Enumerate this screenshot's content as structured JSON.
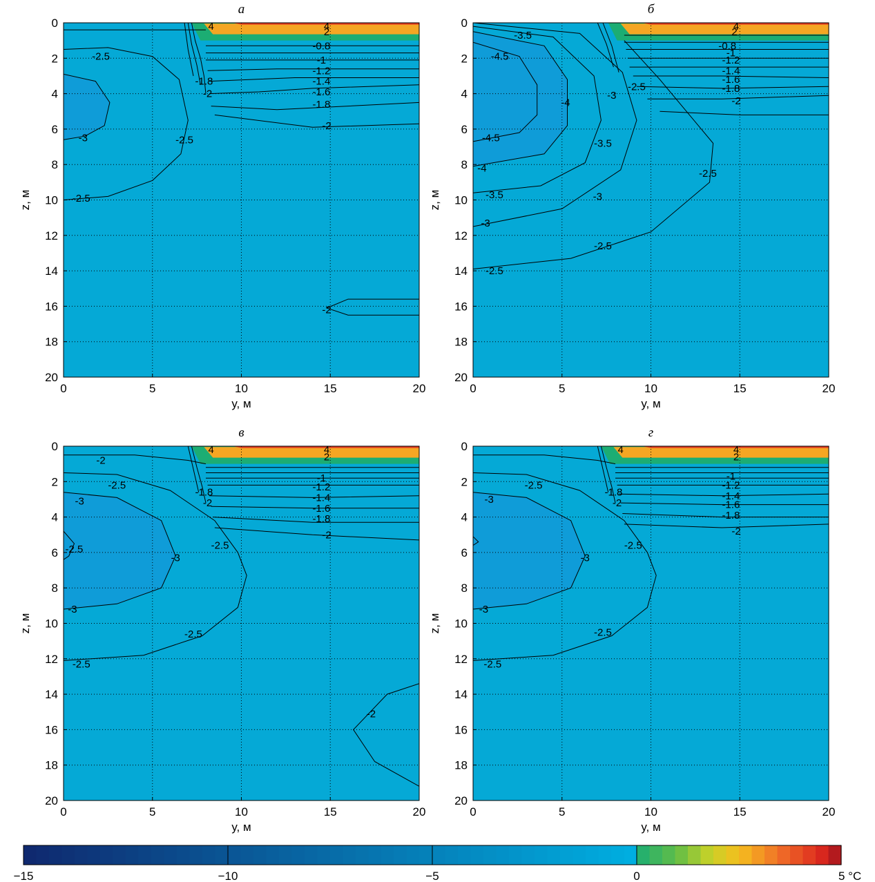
{
  "colorbar": {
    "ticks": [
      "−15",
      "−10",
      "−5",
      "0",
      "5 °C"
    ],
    "range": [
      -15,
      5
    ],
    "unit": "°C"
  },
  "colors": {
    "background_fill": "#05a9d6",
    "cold_core": "#0f9cd8",
    "colder_core": "#1590d4",
    "green": "#1cad73",
    "orange": "#f5a623",
    "red": "#e03a20",
    "line": "#000000"
  },
  "chart_data": [
    {
      "type": "contour",
      "title": "а",
      "xlabel": "y, м",
      "ylabel": "z, м",
      "xlim": [
        0,
        20
      ],
      "ylim": [
        20,
        0
      ],
      "xticks": [
        "0",
        "5",
        "10",
        "15",
        "20"
      ],
      "yticks": [
        "0",
        "2",
        "4",
        "6",
        "8",
        "10",
        "12",
        "14",
        "16",
        "18",
        "20"
      ],
      "grid": true,
      "contour_labels": [
        {
          "text": "-2.5",
          "y": 2.1,
          "z": 1.9
        },
        {
          "text": "-3",
          "y": 1.1,
          "z": 6.5
        },
        {
          "text": "-2.5",
          "y": 6.8,
          "z": 6.6
        },
        {
          "text": "-2.5",
          "y": 1.0,
          "z": 9.9
        },
        {
          "text": "-2",
          "y": 14.8,
          "z": 16.2
        },
        {
          "text": "-2",
          "y": 14.8,
          "z": 5.8
        },
        {
          "text": "-1.8",
          "y": 14.5,
          "z": 4.6
        },
        {
          "text": "-1.6",
          "y": 14.5,
          "z": 3.9
        },
        {
          "text": "-1.4",
          "y": 14.5,
          "z": 3.3
        },
        {
          "text": "-1.2",
          "y": 14.5,
          "z": 2.7
        },
        {
          "text": "-1",
          "y": 14.5,
          "z": 2.1
        },
        {
          "text": "-0.8",
          "y": 14.5,
          "z": 1.3
        },
        {
          "text": "-2",
          "y": 8.1,
          "z": 4.0
        },
        {
          "text": "-1.8",
          "y": 7.9,
          "z": 3.3
        },
        {
          "text": "2",
          "y": 14.8,
          "z": 0.5
        },
        {
          "text": "4",
          "y": 14.8,
          "z": 0.2
        },
        {
          "text": "4",
          "y": 8.3,
          "z": 0.2
        }
      ]
    },
    {
      "type": "contour",
      "title": "б",
      "xlabel": "y, м",
      "ylabel": "z, м",
      "xlim": [
        0,
        20
      ],
      "ylim": [
        20,
        0
      ],
      "xticks": [
        "0",
        "5",
        "10",
        "15",
        "20"
      ],
      "yticks": [
        "0",
        "2",
        "4",
        "6",
        "8",
        "10",
        "12",
        "14",
        "16",
        "18",
        "20"
      ],
      "grid": true,
      "contour_labels": [
        {
          "text": "-4.5",
          "y": 1.5,
          "z": 1.9
        },
        {
          "text": "-4",
          "y": 5.2,
          "z": 4.5
        },
        {
          "text": "-4.5",
          "y": 1.0,
          "z": 6.5
        },
        {
          "text": "-4",
          "y": 0.5,
          "z": 8.2
        },
        {
          "text": "-3.5",
          "y": 1.2,
          "z": 9.7
        },
        {
          "text": "-3",
          "y": 0.7,
          "z": 11.3
        },
        {
          "text": "-2.5",
          "y": 1.2,
          "z": 14.0
        },
        {
          "text": "-3.5",
          "y": 7.3,
          "z": 6.8
        },
        {
          "text": "-3",
          "y": 7.0,
          "z": 9.8
        },
        {
          "text": "-2.5",
          "y": 7.3,
          "z": 12.6
        },
        {
          "text": "-3",
          "y": 7.8,
          "z": 4.1
        },
        {
          "text": "-2.5",
          "y": 9.2,
          "z": 3.6
        },
        {
          "text": "-2.5",
          "y": 13.2,
          "z": 8.5
        },
        {
          "text": "-3.5",
          "y": 2.8,
          "z": 0.7
        },
        {
          "text": "-2",
          "y": 14.8,
          "z": 4.4
        },
        {
          "text": "-1.8",
          "y": 14.5,
          "z": 3.7
        },
        {
          "text": "-1.6",
          "y": 14.5,
          "z": 3.2
        },
        {
          "text": "-1.4",
          "y": 14.5,
          "z": 2.7
        },
        {
          "text": "-1.2",
          "y": 14.5,
          "z": 2.1
        },
        {
          "text": "-1",
          "y": 14.5,
          "z": 1.7
        },
        {
          "text": "-0.8",
          "y": 14.3,
          "z": 1.3
        },
        {
          "text": "2",
          "y": 14.7,
          "z": 0.5
        },
        {
          "text": "4",
          "y": 14.8,
          "z": 0.2
        }
      ]
    },
    {
      "type": "contour",
      "title": "в",
      "xlabel": "y, м",
      "ylabel": "z, м",
      "xlim": [
        0,
        20
      ],
      "ylim": [
        20,
        0
      ],
      "xticks": [
        "0",
        "5",
        "10",
        "15",
        "20"
      ],
      "yticks": [
        "0",
        "2",
        "4",
        "6",
        "8",
        "10",
        "12",
        "14",
        "16",
        "18",
        "20"
      ],
      "grid": true,
      "contour_labels": [
        {
          "text": "-2",
          "y": 2.1,
          "z": 0.8
        },
        {
          "text": "-2.5",
          "y": 3.0,
          "z": 2.2
        },
        {
          "text": "-3",
          "y": 0.9,
          "z": 3.1
        },
        {
          "text": "-2.5",
          "y": 0.6,
          "z": 5.8
        },
        {
          "text": "-3",
          "y": 6.3,
          "z": 6.3
        },
        {
          "text": "-2.5",
          "y": 8.8,
          "z": 5.6
        },
        {
          "text": "-3",
          "y": 0.5,
          "z": 9.2
        },
        {
          "text": "-2.5",
          "y": 7.3,
          "z": 10.6
        },
        {
          "text": "-2.5",
          "y": 1.0,
          "z": 12.3
        },
        {
          "text": "-2",
          "y": 17.3,
          "z": 15.1
        },
        {
          "text": "-2",
          "y": 14.8,
          "z": 5.0
        },
        {
          "text": "-1.8",
          "y": 14.5,
          "z": 4.1
        },
        {
          "text": "-1.6",
          "y": 14.5,
          "z": 3.5
        },
        {
          "text": "-1.4",
          "y": 14.5,
          "z": 2.9
        },
        {
          "text": "-1.2",
          "y": 14.5,
          "z": 2.3
        },
        {
          "text": "-1",
          "y": 14.5,
          "z": 1.8
        },
        {
          "text": "-2",
          "y": 8.1,
          "z": 3.2
        },
        {
          "text": "-1.8",
          "y": 7.9,
          "z": 2.6
        },
        {
          "text": "2",
          "y": 14.8,
          "z": 0.6
        },
        {
          "text": "4",
          "y": 14.8,
          "z": 0.2
        },
        {
          "text": "4",
          "y": 8.3,
          "z": 0.2
        }
      ]
    },
    {
      "type": "contour",
      "title": "г",
      "xlabel": "y, м",
      "ylabel": "z, м",
      "xlim": [
        0,
        20
      ],
      "ylim": [
        20,
        0
      ],
      "xticks": [
        "0",
        "5",
        "10",
        "15",
        "20"
      ],
      "yticks": [
        "0",
        "2",
        "4",
        "6",
        "8",
        "10",
        "12",
        "14",
        "16",
        "18",
        "20"
      ],
      "grid": true,
      "contour_labels": [
        {
          "text": "-2.5",
          "y": 3.4,
          "z": 2.2
        },
        {
          "text": "-3",
          "y": 0.9,
          "z": 3.0
        },
        {
          "text": "-3",
          "y": 6.3,
          "z": 6.3
        },
        {
          "text": "-2.5",
          "y": 9.0,
          "z": 5.6
        },
        {
          "text": "-3",
          "y": 0.6,
          "z": 9.2
        },
        {
          "text": "-2.5",
          "y": 7.3,
          "z": 10.5
        },
        {
          "text": "-2.5",
          "y": 1.1,
          "z": 12.3
        },
        {
          "text": "-2",
          "y": 14.8,
          "z": 4.8
        },
        {
          "text": "-1.8",
          "y": 14.5,
          "z": 3.9
        },
        {
          "text": "-1.6",
          "y": 14.5,
          "z": 3.3
        },
        {
          "text": "-1.4",
          "y": 14.5,
          "z": 2.8
        },
        {
          "text": "-1.2",
          "y": 14.5,
          "z": 2.2
        },
        {
          "text": "-1",
          "y": 14.5,
          "z": 1.7
        },
        {
          "text": "-2",
          "y": 8.1,
          "z": 3.2
        },
        {
          "text": "-1.8",
          "y": 7.9,
          "z": 2.6
        },
        {
          "text": "2",
          "y": 14.8,
          "z": 0.6
        },
        {
          "text": "4",
          "y": 14.8,
          "z": 0.2
        },
        {
          "text": "4",
          "y": 8.3,
          "z": 0.2
        }
      ]
    }
  ]
}
